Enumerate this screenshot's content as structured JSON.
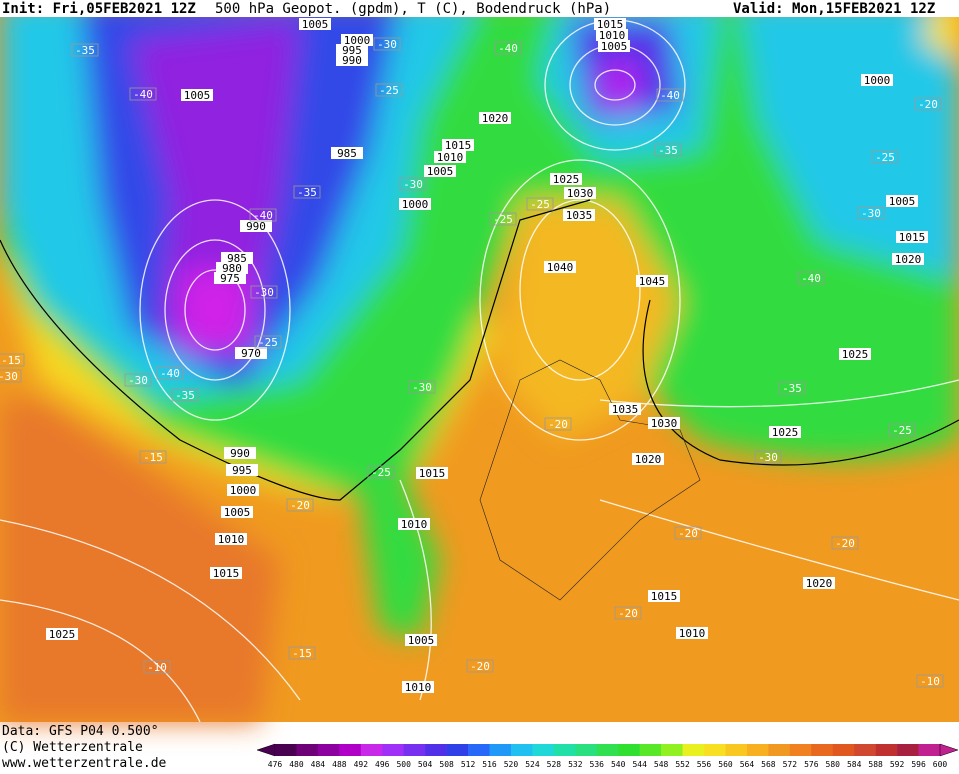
{
  "header": {
    "init": "Init: Fri,05FEB2021 12Z",
    "title": "500 hPa Geopot. (gpdm), T (C), Bodendruck (hPa)",
    "valid": "Valid: Mon,15FEB2021 12Z"
  },
  "footer": {
    "data": "Data: GFS P04 0.500°",
    "copyright": "(C) Wetterzentrale",
    "url": "www.wetterzentrale.de"
  },
  "colorbar": {
    "labels": [
      476,
      480,
      484,
      488,
      492,
      496,
      500,
      504,
      508,
      512,
      516,
      520,
      524,
      528,
      532,
      536,
      540,
      544,
      548,
      552,
      556,
      560,
      564,
      568,
      572,
      576,
      580,
      584,
      588,
      592,
      596,
      600
    ],
    "colors": [
      "#4a0050",
      "#6e0078",
      "#8c00a0",
      "#b000c8",
      "#c828e8",
      "#a030f8",
      "#7830f0",
      "#5030e8",
      "#3040e8",
      "#2868f8",
      "#2098f8",
      "#20c0f0",
      "#20d8d8",
      "#20e0a8",
      "#28e080",
      "#30e050",
      "#30e030",
      "#58e828",
      "#90f020",
      "#e8f020",
      "#f8e020",
      "#f8c820",
      "#f8b020",
      "#f09820",
      "#f08020",
      "#e86820",
      "#e05820",
      "#d04830",
      "#c03030",
      "#a82040",
      "#c02090"
    ]
  },
  "isobar_labels": [
    1005,
    1000,
    995,
    990,
    1015,
    1010,
    1005,
    1005,
    1020,
    1015,
    1010,
    1005,
    985,
    1000,
    1025,
    1030,
    1035,
    990,
    985,
    980,
    975,
    970,
    1040,
    1045,
    1000,
    1005,
    1015,
    1020,
    1025,
    1035,
    1030,
    1025,
    1020,
    990,
    995,
    1000,
    1005,
    1010,
    1015,
    1015,
    1010,
    1025,
    1005,
    1010,
    1015,
    1010,
    1020
  ],
  "temperature_labels": [
    -35,
    -40,
    -30,
    -40,
    -40,
    -25,
    -35,
    -30,
    -40,
    -25,
    -25,
    -35,
    -20,
    -25,
    -30,
    -40,
    -30,
    -25,
    -30,
    -40,
    -35,
    -30,
    -35,
    -25,
    -30,
    -15,
    -30,
    -15,
    -25,
    -20,
    -20,
    -20,
    -20,
    -20,
    -15,
    -10,
    -20,
    -10
  ]
}
